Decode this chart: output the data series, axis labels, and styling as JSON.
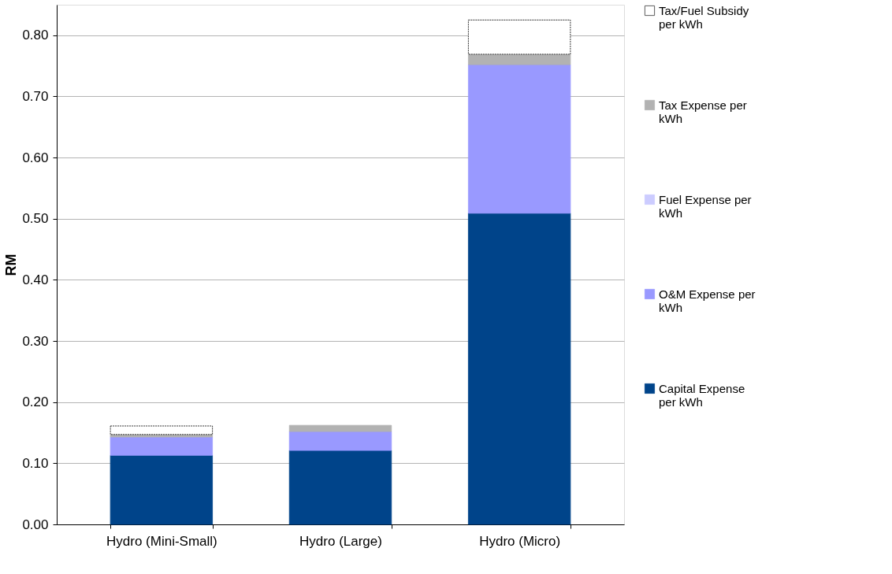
{
  "chart_data": {
    "type": "bar",
    "stacked": true,
    "ylabel": "RM",
    "categories": [
      "Hydro (Mini-Small)",
      "Hydro (Large)",
      "Hydro (Micro)"
    ],
    "series": [
      {
        "name": "Capital Expense per kWh",
        "color": "#00448a",
        "values": [
          0.113,
          0.121,
          0.509
        ]
      },
      {
        "name": "O&M Expense per kWh",
        "color": "#9999ff",
        "values": [
          0.03,
          0.031,
          0.243
        ]
      },
      {
        "name": "Fuel Expense per kWh",
        "color": "#ccccff",
        "values": [
          0,
          0,
          0
        ]
      },
      {
        "name": "Tax Expense per kWh",
        "color": "#b2b2b2",
        "values": [
          0.004,
          0.01,
          0.017
        ]
      },
      {
        "name": "Tax/Fuel Subsidy per kWh",
        "color": "#ffffff",
        "values": [
          0.014,
          0,
          0.056
        ]
      }
    ],
    "ylim": [
      0,
      0.85
    ],
    "yticks": [
      {
        "value": 0,
        "label": "0.00"
      },
      {
        "value": 0.1,
        "label": "0.10"
      },
      {
        "value": 0.2,
        "label": "0.20"
      },
      {
        "value": 0.3,
        "label": "0.30"
      },
      {
        "value": 0.4,
        "label": "0.40"
      },
      {
        "value": 0.5,
        "label": "0.50"
      },
      {
        "value": 0.6,
        "label": "0.60"
      },
      {
        "value": 0.7,
        "label": "0.70"
      },
      {
        "value": 0.8,
        "label": "0.80"
      }
    ],
    "grid": "y",
    "legend": "right"
  }
}
